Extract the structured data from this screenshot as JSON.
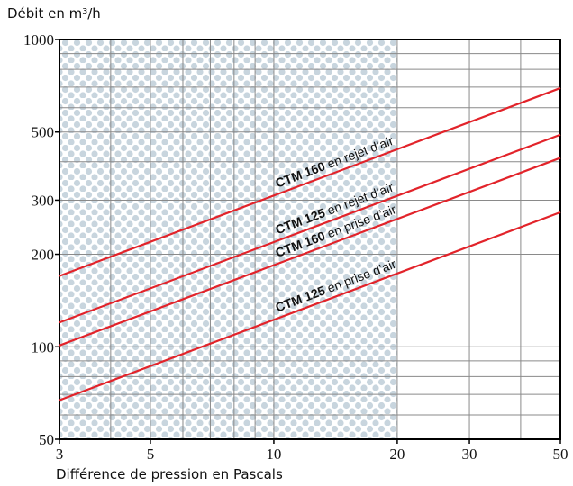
{
  "chart_data": {
    "type": "line",
    "y_label": "Débit en m³/h",
    "x_label": "Différence de pression en Pascals",
    "log_x": true,
    "log_y": true,
    "xlim": [
      3,
      50
    ],
    "ylim": [
      50,
      1000
    ],
    "xticks": [
      3,
      5,
      10,
      20,
      30,
      50
    ],
    "yticks": [
      50,
      100,
      200,
      300,
      500,
      1000
    ],
    "xgrid": [
      3,
      4,
      5,
      6,
      7,
      8,
      9,
      10,
      20,
      30,
      40,
      50
    ],
    "ygrid": [
      50,
      60,
      70,
      80,
      90,
      100,
      200,
      300,
      400,
      500,
      600,
      700,
      800,
      900,
      1000
    ],
    "shaded_xlim": [
      3,
      20
    ],
    "x": [
      3,
      50
    ],
    "series": [
      {
        "name": "CTM 160 en rejet d’air",
        "color": "#e2232a",
        "values": [
          170,
          695
        ]
      },
      {
        "name": "CTM 125 en rejet d’air",
        "color": "#e2232a",
        "values": [
          120,
          490
        ]
      },
      {
        "name": "CTM 160 en prise d’air",
        "color": "#e2232a",
        "values": [
          101,
          412
        ]
      },
      {
        "name": "CTM 125 en prise d’air",
        "color": "#e2232a",
        "values": [
          67,
          274
        ]
      }
    ]
  }
}
